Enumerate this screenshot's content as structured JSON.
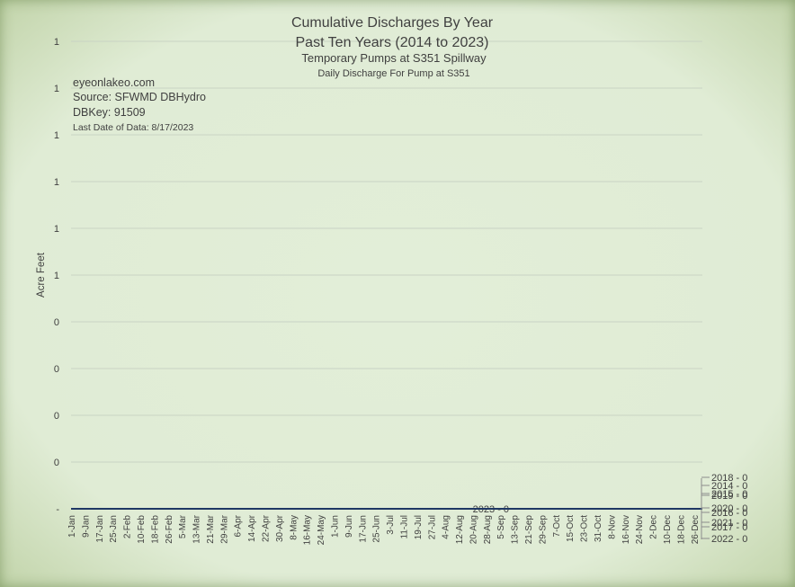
{
  "chart_data": {
    "type": "line",
    "title": "Cumulative Discharges By Year",
    "subtitle_lines": [
      "Past Ten Years (2014 to 2023)",
      "Temporary Pumps at S351 Spillway",
      "Daily Discharge For Pump at S351"
    ],
    "annotations": [
      "eyeonlakeo.com",
      "Source: SFWMD DBHydro",
      "DBKey: 91509",
      "Last Date of Data: 8/17/2023"
    ],
    "ylabel": "Acre Feet",
    "y_tick_labels": [
      "-",
      "0",
      "0",
      "0",
      "0",
      "1",
      "1",
      "1",
      "1",
      "1",
      "1"
    ],
    "ylim": [
      0,
      1
    ],
    "x_tick_labels": [
      "1-Jan",
      "9-Jan",
      "17-Jan",
      "25-Jan",
      "2-Feb",
      "10-Feb",
      "18-Feb",
      "26-Feb",
      "5-Mar",
      "13-Mar",
      "21-Mar",
      "29-Mar",
      "6-Apr",
      "14-Apr",
      "22-Apr",
      "30-Apr",
      "8-May",
      "16-May",
      "24-May",
      "1-Jun",
      "9-Jun",
      "17-Jun",
      "25-Jun",
      "3-Jul",
      "11-Jul",
      "19-Jul",
      "27-Jul",
      "4-Aug",
      "12-Aug",
      "20-Aug",
      "28-Aug",
      "5-Sep",
      "13-Sep",
      "21-Sep",
      "29-Sep",
      "7-Oct",
      "15-Oct",
      "23-Oct",
      "31-Oct",
      "8-Nov",
      "16-Nov",
      "24-Nov",
      "2-Dec",
      "10-Dec",
      "18-Dec",
      "26-Dec"
    ],
    "grid": true,
    "series": [
      {
        "name": "2023",
        "label": "2023 - 0",
        "color": "#c0504d",
        "x_start": "1-Jan",
        "x_end": "17-Aug",
        "value": 0
      },
      {
        "name": "2022",
        "label": "2022 - 0",
        "color": "#1f3864",
        "x_start": "1-Jan",
        "x_end": "31-Dec",
        "value": 0
      }
    ],
    "end_labels": [
      "2018 - 0",
      "2014 - 0",
      "2015 - 0",
      "2019 - 0",
      "2020 - 0",
      "2016 - 0",
      "2021 - 0",
      "2017 - 0",
      "2022 - 0"
    ]
  }
}
